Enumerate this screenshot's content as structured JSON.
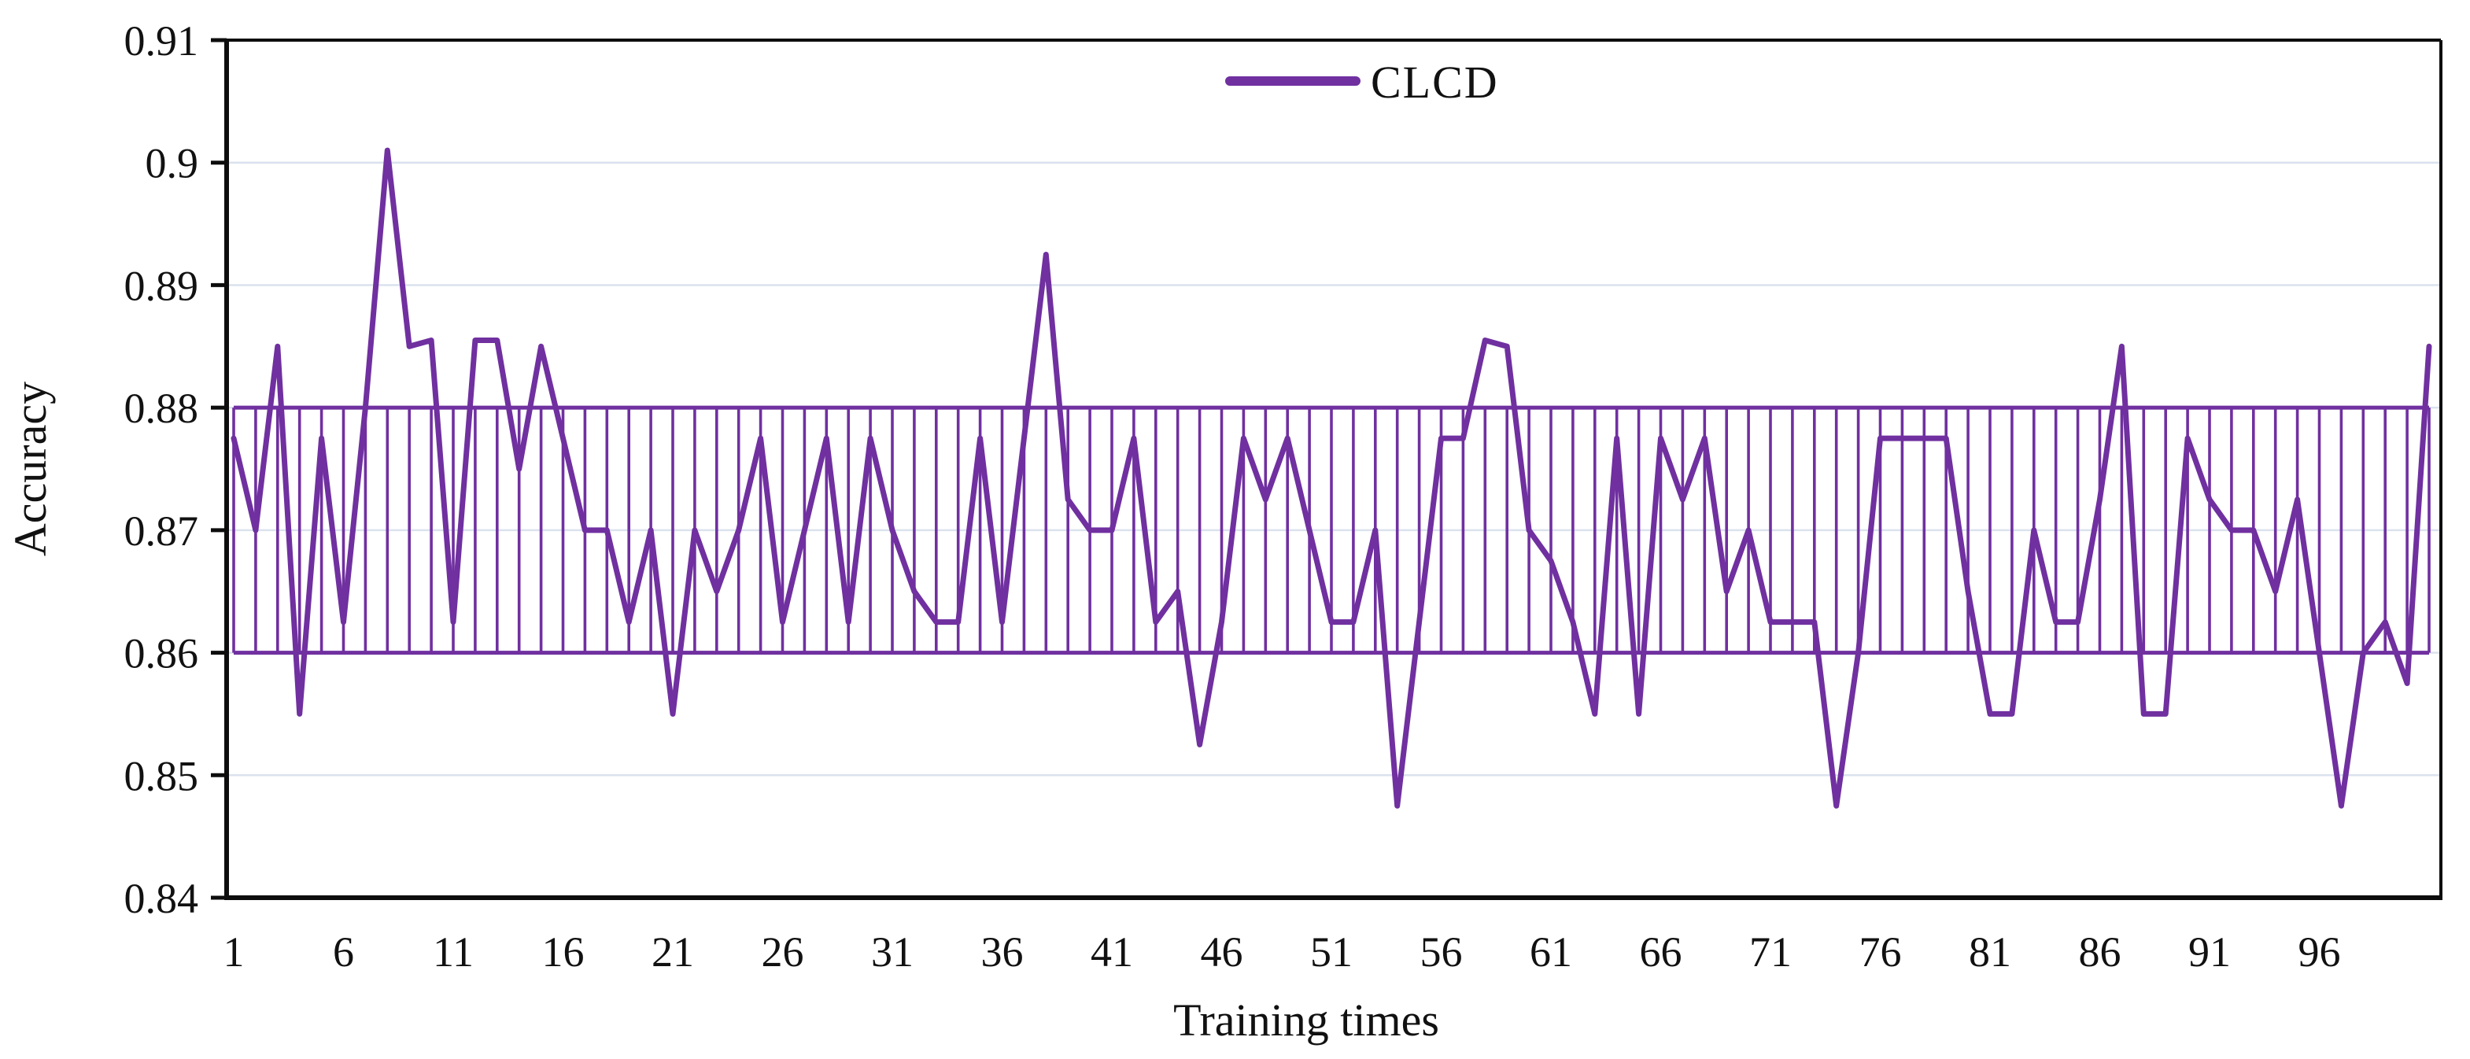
{
  "chart_data": {
    "type": "line",
    "title": "",
    "xlabel": "Training times",
    "ylabel": "Accuracy",
    "legend": [
      "CLCD"
    ],
    "legend_position": "top-center",
    "grid": true,
    "xlim": [
      1,
      101
    ],
    "ylim": [
      0.84,
      0.91
    ],
    "ytick_labels": [
      "0.84",
      "0.85",
      "0.86",
      "0.87",
      "0.88",
      "0.89",
      "0.9",
      "0.91"
    ],
    "ytick_values": [
      0.84,
      0.85,
      0.86,
      0.87,
      0.88,
      0.89,
      0.9,
      0.91
    ],
    "xtick_labels": [
      "1",
      "6",
      "11",
      "16",
      "21",
      "26",
      "31",
      "36",
      "41",
      "46",
      "51",
      "56",
      "61",
      "66",
      "71",
      "76",
      "81",
      "86",
      "91",
      "96"
    ],
    "xtick_values": [
      1,
      6,
      11,
      16,
      21,
      26,
      31,
      36,
      41,
      46,
      51,
      56,
      61,
      66,
      71,
      76,
      81,
      86,
      91,
      96
    ],
    "x_start": 1,
    "band": {
      "high": 0.88,
      "low": 0.86,
      "note": "vertical high-low line at every training step"
    },
    "series": [
      {
        "name": "CLCD",
        "values": [
          0.8775,
          0.87,
          0.885,
          0.855,
          0.8775,
          0.8625,
          0.88,
          0.901,
          0.885,
          0.8855,
          0.8625,
          0.8855,
          0.8855,
          0.875,
          0.885,
          0.8775,
          0.87,
          0.87,
          0.8625,
          0.87,
          0.855,
          0.87,
          0.865,
          0.87,
          0.8775,
          0.8625,
          0.87,
          0.8775,
          0.8625,
          0.8775,
          0.87,
          0.865,
          0.8625,
          0.8625,
          0.8775,
          0.8625,
          0.8775,
          0.8925,
          0.8725,
          0.87,
          0.87,
          0.8775,
          0.8625,
          0.865,
          0.8525,
          0.8625,
          0.8775,
          0.8725,
          0.8775,
          0.87,
          0.8625,
          0.8625,
          0.87,
          0.8475,
          0.8625,
          0.8775,
          0.8775,
          0.8855,
          0.885,
          0.87,
          0.8675,
          0.8625,
          0.855,
          0.8775,
          0.855,
          0.8775,
          0.8725,
          0.8775,
          0.865,
          0.87,
          0.8625,
          0.8625,
          0.8625,
          0.8475,
          0.86,
          0.8775,
          0.8775,
          0.8775,
          0.8775,
          0.865,
          0.855,
          0.855,
          0.87,
          0.8625,
          0.8625,
          0.8725,
          0.885,
          0.855,
          0.855,
          0.8775,
          0.8725,
          0.87,
          0.87,
          0.865,
          0.8725,
          0.86,
          0.8475,
          0.86,
          0.8625,
          0.8575,
          0.885
        ]
      }
    ],
    "colors": {
      "series": "#7030A0",
      "band": "#7030A0",
      "gridline": "#dbe2ee",
      "axis": "#0d0d0d",
      "text": "#111111",
      "background": "#ffffff"
    }
  },
  "legend": {
    "label": "CLCD"
  },
  "axes": {
    "y_title": "Accuracy",
    "x_title": "Training times"
  }
}
